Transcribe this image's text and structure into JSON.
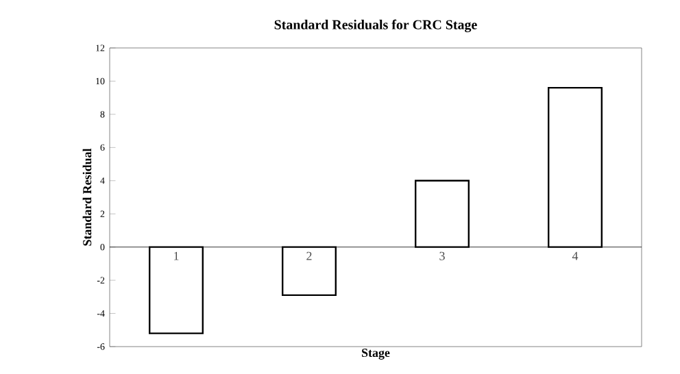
{
  "chart_data": {
    "type": "bar",
    "title": "Standard Residuals for CRC Stage",
    "xlabel": "Stage",
    "ylabel": "Standard Residual",
    "categories": [
      "1",
      "2",
      "3",
      "4"
    ],
    "values": [
      -5.2,
      -2.9,
      4.0,
      9.6
    ],
    "color": "#ffffff",
    "ylim": [
      -6,
      12
    ],
    "yticks": [
      -6,
      -4,
      -2,
      0,
      2,
      4,
      6,
      8,
      10,
      12
    ],
    "grid": false
  }
}
